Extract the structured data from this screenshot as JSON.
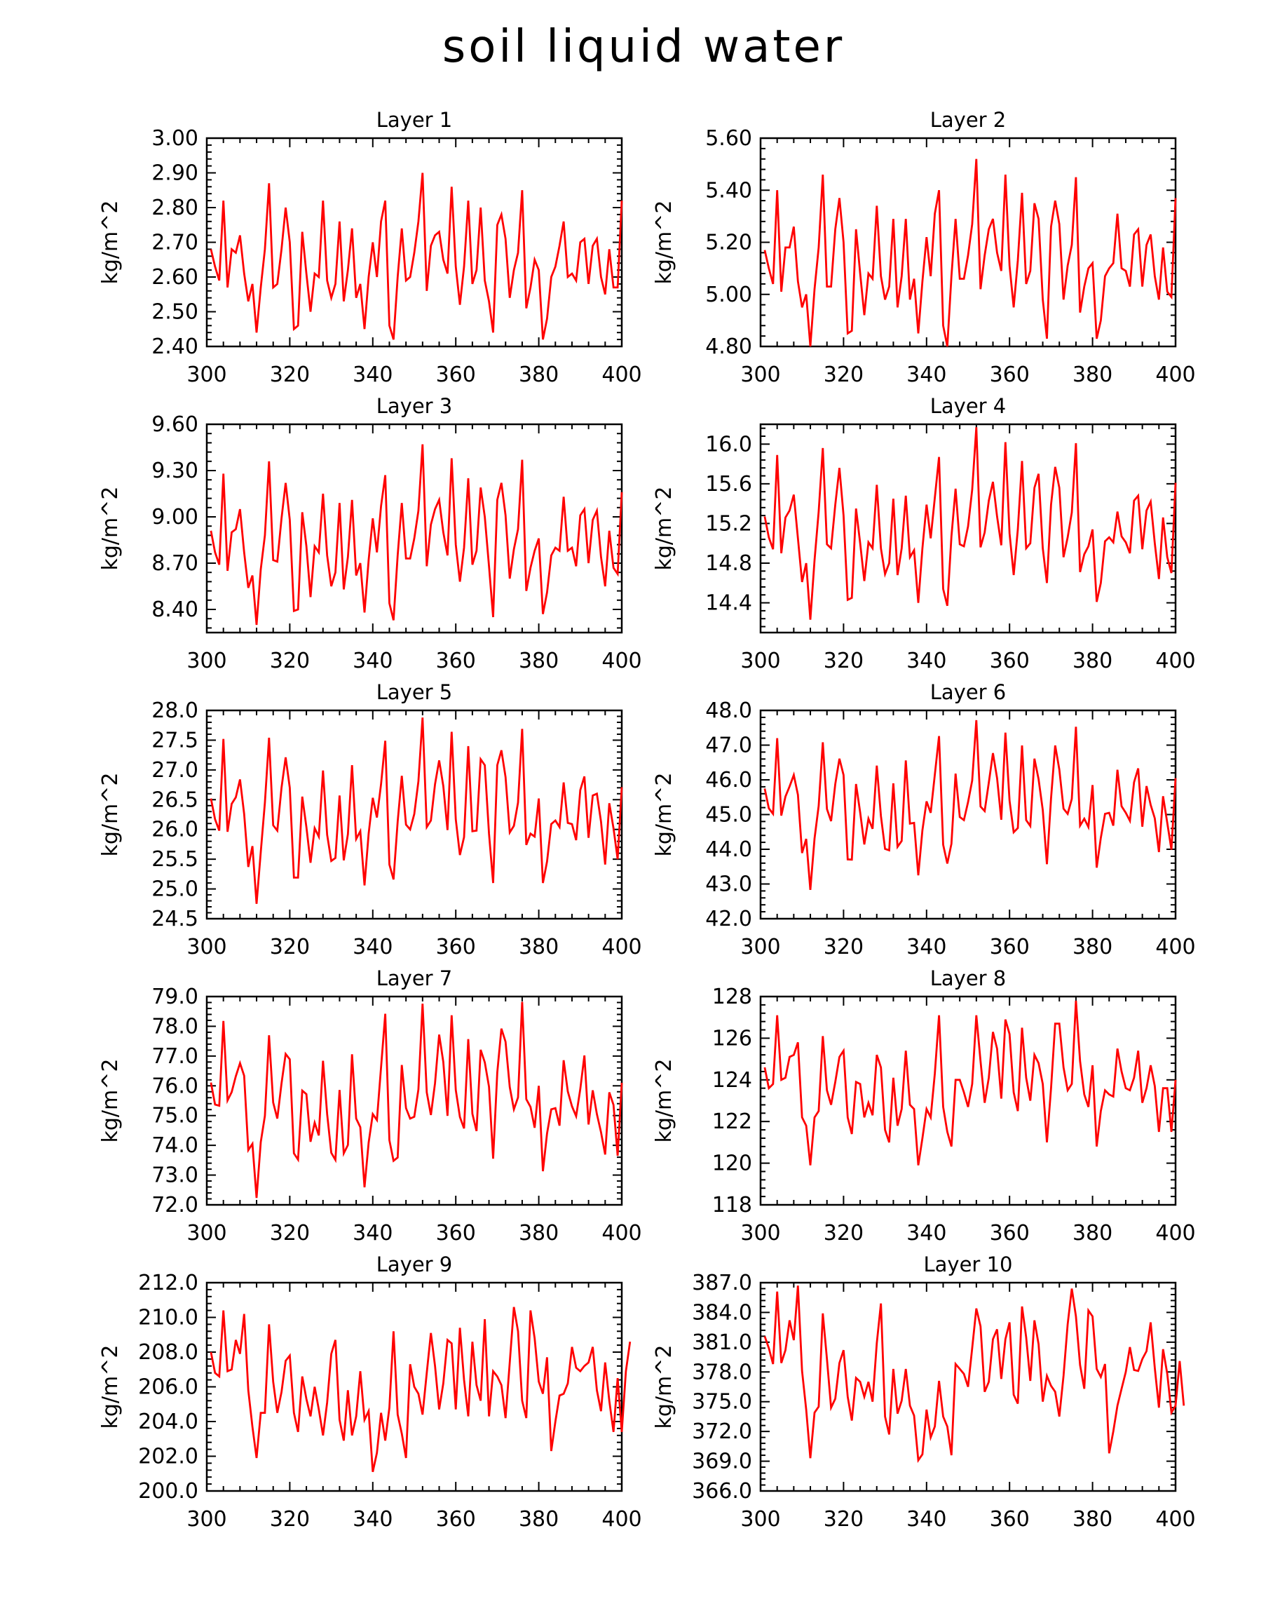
{
  "title": "soil liquid water",
  "footer_label": "",
  "chart_data": [
    {
      "type": "line",
      "title": "Layer 1",
      "xlabel": "",
      "ylabel": "kg/m^2",
      "xlim": [
        300,
        400
      ],
      "ylim": [
        2.4,
        3.0
      ],
      "yticks": [
        "2.40",
        "2.50",
        "2.60",
        "2.70",
        "2.80",
        "2.90",
        "3.00"
      ],
      "xticks": [
        "300",
        "320",
        "340",
        "360",
        "380",
        "400"
      ],
      "x_start": 301,
      "x_step": 1,
      "values": [
        2.68,
        2.63,
        2.59,
        2.82,
        2.57,
        2.68,
        2.67,
        2.72,
        2.61,
        2.53,
        2.58,
        2.44,
        2.57,
        2.68,
        2.87,
        2.57,
        2.58,
        2.68,
        2.8,
        2.7,
        2.45,
        2.46,
        2.73,
        2.61,
        2.5,
        2.61,
        2.6,
        2.82,
        2.59,
        2.54,
        2.58,
        2.76,
        2.53,
        2.62,
        2.74,
        2.54,
        2.58,
        2.45,
        2.6,
        2.7,
        2.6,
        2.76,
        2.82,
        2.46,
        2.42,
        2.6,
        2.74,
        2.59,
        2.6,
        2.67,
        2.76,
        2.9,
        2.56,
        2.69,
        2.72,
        2.73,
        2.65,
        2.61,
        2.86,
        2.63,
        2.52,
        2.63,
        2.82,
        2.58,
        2.62,
        2.8,
        2.59,
        2.53,
        2.44,
        2.75,
        2.78,
        2.71,
        2.54,
        2.62,
        2.67,
        2.85,
        2.51,
        2.57,
        2.65,
        2.62,
        2.42,
        2.48,
        2.6,
        2.63,
        2.69,
        2.76,
        2.6,
        2.61,
        2.59,
        2.7,
        2.71,
        2.58,
        2.69,
        2.71,
        2.6,
        2.55,
        2.68,
        2.57,
        2.57,
        2.82
      ]
    },
    {
      "type": "line",
      "title": "Layer 2",
      "xlabel": "",
      "ylabel": "kg/m^2",
      "xlim": [
        300,
        400
      ],
      "ylim": [
        4.8,
        5.6
      ],
      "yticks": [
        "4.80",
        "5.00",
        "5.20",
        "5.40",
        "5.60"
      ],
      "xticks": [
        "300",
        "320",
        "340",
        "360",
        "380",
        "400"
      ],
      "x_start": 301,
      "x_step": 1,
      "values": [
        5.17,
        5.1,
        5.04,
        5.4,
        5.01,
        5.18,
        5.18,
        5.26,
        5.05,
        4.95,
        5.0,
        4.8,
        5.02,
        5.18,
        5.46,
        5.03,
        5.03,
        5.25,
        5.37,
        5.2,
        4.85,
        4.86,
        5.25,
        5.08,
        4.92,
        5.08,
        5.06,
        5.34,
        5.07,
        4.98,
        5.03,
        5.29,
        4.95,
        5.07,
        5.29,
        4.98,
        5.06,
        4.85,
        5.05,
        5.22,
        5.07,
        5.31,
        5.4,
        4.88,
        4.8,
        5.07,
        5.29,
        5.06,
        5.06,
        5.15,
        5.27,
        5.52,
        5.02,
        5.15,
        5.25,
        5.29,
        5.16,
        5.09,
        5.46,
        5.11,
        4.95,
        5.13,
        5.39,
        5.04,
        5.09,
        5.35,
        5.29,
        4.98,
        4.83,
        5.26,
        5.36,
        5.27,
        4.98,
        5.11,
        5.19,
        5.45,
        4.93,
        5.03,
        5.1,
        5.12,
        4.83,
        4.9,
        5.07,
        5.1,
        5.12,
        5.31,
        5.1,
        5.09,
        5.03,
        5.23,
        5.25,
        5.03,
        5.19,
        5.23,
        5.07,
        4.98,
        5.18,
        5.01,
        4.99,
        5.37
      ]
    },
    {
      "type": "line",
      "title": "Layer 3",
      "xlabel": "",
      "ylabel": "kg/m^2",
      "xlim": [
        300,
        400
      ],
      "ylim": [
        8.25,
        9.6
      ],
      "yticks": [
        "8.40",
        "8.70",
        "9.00",
        "9.30",
        "9.60"
      ],
      "xticks": [
        "300",
        "320",
        "340",
        "360",
        "380",
        "400"
      ],
      "x_start": 301,
      "x_step": 1,
      "values": [
        8.91,
        8.77,
        8.69,
        9.28,
        8.65,
        8.9,
        8.92,
        9.05,
        8.77,
        8.54,
        8.62,
        8.3,
        8.66,
        8.88,
        9.36,
        8.72,
        8.71,
        8.99,
        9.22,
        8.98,
        8.39,
        8.4,
        9.03,
        8.81,
        8.48,
        8.81,
        8.77,
        9.15,
        8.75,
        8.55,
        8.64,
        9.09,
        8.53,
        8.74,
        9.11,
        8.62,
        8.7,
        8.38,
        8.72,
        8.99,
        8.77,
        9.07,
        9.27,
        8.44,
        8.33,
        8.75,
        9.09,
        8.73,
        8.73,
        8.86,
        9.04,
        9.47,
        8.68,
        8.95,
        9.05,
        9.11,
        8.9,
        8.75,
        9.38,
        8.82,
        8.58,
        8.8,
        9.25,
        8.69,
        8.78,
        9.19,
        9.0,
        8.68,
        8.35,
        9.11,
        9.22,
        9.01,
        8.6,
        8.79,
        8.92,
        9.37,
        8.52,
        8.67,
        8.78,
        8.86,
        8.37,
        8.51,
        8.75,
        8.8,
        8.78,
        9.13,
        8.78,
        8.8,
        8.68,
        9.01,
        9.05,
        8.7,
        8.98,
        9.04,
        8.74,
        8.55,
        8.91,
        8.67,
        8.63,
        9.16
      ]
    },
    {
      "type": "line",
      "title": "Layer 4",
      "xlabel": "",
      "ylabel": "kg/m^2",
      "xlim": [
        300,
        400
      ],
      "ylim": [
        14.1,
        16.2
      ],
      "yticks": [
        "14.4",
        "14.8",
        "15.2",
        "15.6",
        "16.0"
      ],
      "xticks": [
        "300",
        "320",
        "340",
        "360",
        "380",
        "400"
      ],
      "x_start": 301,
      "x_step": 1,
      "values": [
        15.27,
        15.06,
        14.94,
        15.89,
        14.9,
        15.26,
        15.33,
        15.49,
        15.05,
        14.61,
        14.8,
        14.23,
        14.83,
        15.32,
        15.96,
        14.99,
        14.95,
        15.39,
        15.76,
        15.28,
        14.43,
        14.45,
        15.35,
        15.0,
        14.62,
        15.01,
        14.95,
        15.59,
        14.95,
        14.69,
        14.8,
        15.45,
        14.68,
        14.95,
        15.48,
        14.86,
        14.93,
        14.4,
        14.95,
        15.39,
        15.05,
        15.46,
        15.87,
        14.54,
        14.37,
        15.07,
        15.55,
        14.99,
        14.97,
        15.17,
        15.54,
        16.17,
        14.96,
        15.11,
        15.43,
        15.62,
        15.27,
        14.98,
        16.02,
        15.1,
        14.68,
        15.14,
        15.83,
        14.95,
        15.0,
        15.56,
        15.7,
        14.95,
        14.6,
        15.39,
        15.77,
        15.56,
        14.86,
        15.06,
        15.31,
        16.01,
        14.71,
        14.89,
        14.97,
        15.14,
        14.41,
        14.6,
        15.02,
        15.06,
        15.01,
        15.32,
        15.07,
        15.01,
        14.9,
        15.43,
        15.48,
        14.94,
        15.33,
        15.42,
        15.0,
        14.64,
        15.26,
        14.86,
        14.7,
        15.61
      ]
    },
    {
      "type": "line",
      "title": "Layer 5",
      "xlabel": "",
      "ylabel": "kg/m^2",
      "xlim": [
        300,
        400
      ],
      "ylim": [
        24.5,
        28.0
      ],
      "yticks": [
        "24.5",
        "25.0",
        "25.5",
        "26.0",
        "26.5",
        "27.0",
        "27.5",
        "28.0"
      ],
      "xticks": [
        "300",
        "320",
        "340",
        "360",
        "380",
        "400"
      ],
      "x_start": 301,
      "x_step": 1,
      "values": [
        26.52,
        26.17,
        25.98,
        27.52,
        25.96,
        26.43,
        26.54,
        26.84,
        26.26,
        25.37,
        25.72,
        24.75,
        25.62,
        26.45,
        27.54,
        26.07,
        25.98,
        26.7,
        27.21,
        26.7,
        25.19,
        25.19,
        26.55,
        26.04,
        25.44,
        26.02,
        25.88,
        26.99,
        25.91,
        25.47,
        25.52,
        26.57,
        25.48,
        25.92,
        27.08,
        25.84,
        25.97,
        25.06,
        25.93,
        26.53,
        26.2,
        26.76,
        27.49,
        25.41,
        25.16,
        26.13,
        26.9,
        26.08,
        26.0,
        26.26,
        26.81,
        27.88,
        26.04,
        26.15,
        26.76,
        27.16,
        26.73,
        25.99,
        27.64,
        26.17,
        25.57,
        25.87,
        27.4,
        25.97,
        25.98,
        27.18,
        27.08,
        25.93,
        25.1,
        27.08,
        27.33,
        26.88,
        25.95,
        26.06,
        26.45,
        27.69,
        25.74,
        25.93,
        25.88,
        26.52,
        25.1,
        25.46,
        26.09,
        26.15,
        26.04,
        26.79,
        26.11,
        26.09,
        25.82,
        26.66,
        26.89,
        25.86,
        26.57,
        26.6,
        26.13,
        25.41,
        26.44,
        26.02,
        25.5,
        26.71
      ]
    },
    {
      "type": "line",
      "title": "Layer 6",
      "xlabel": "",
      "ylabel": "kg/m^2",
      "xlim": [
        300,
        400
      ],
      "ylim": [
        42.0,
        48.0
      ],
      "yticks": [
        "42.0",
        "43.0",
        "44.0",
        "45.0",
        "46.0",
        "47.0",
        "48.0"
      ],
      "xticks": [
        "300",
        "320",
        "340",
        "360",
        "380",
        "400"
      ],
      "x_start": 301,
      "x_step": 1,
      "values": [
        45.75,
        45.18,
        45.02,
        47.2,
        44.97,
        45.52,
        45.81,
        46.14,
        45.57,
        43.89,
        44.3,
        42.83,
        44.31,
        45.25,
        47.08,
        45.16,
        44.81,
        45.88,
        46.61,
        46.14,
        43.71,
        43.7,
        45.88,
        45.06,
        44.14,
        44.88,
        44.59,
        46.41,
        44.96,
        44.01,
        43.97,
        45.9,
        44.07,
        44.24,
        46.56,
        44.74,
        44.76,
        43.25,
        44.55,
        45.38,
        45.05,
        46.15,
        47.26,
        44.13,
        43.59,
        44.16,
        46.18,
        44.93,
        44.84,
        45.36,
        45.98,
        47.72,
        45.23,
        45.1,
        45.92,
        46.77,
        46.05,
        44.85,
        47.36,
        45.4,
        44.49,
        44.61,
        46.99,
        44.84,
        44.67,
        46.61,
        46.02,
        45.13,
        43.57,
        45.47,
        46.99,
        46.3,
        45.17,
        45.02,
        45.45,
        47.53,
        44.68,
        44.88,
        44.64,
        45.85,
        43.47,
        44.33,
        45.02,
        45.05,
        44.68,
        46.29,
        45.24,
        45.05,
        44.82,
        45.93,
        46.33,
        44.65,
        45.82,
        45.28,
        44.89,
        43.92,
        45.53,
        44.76,
        43.99,
        46.05
      ]
    },
    {
      "type": "line",
      "title": "Layer 7",
      "xlabel": "",
      "ylabel": "kg/m^2",
      "xlim": [
        300,
        400
      ],
      "ylim": [
        72.0,
        79.0
      ],
      "yticks": [
        "72.0",
        "73.0",
        "74.0",
        "75.0",
        "76.0",
        "77.0",
        "78.0",
        "79.0"
      ],
      "xticks": [
        "300",
        "320",
        "340",
        "360",
        "380",
        "400"
      ],
      "x_start": 301,
      "x_step": 1,
      "values": [
        76.11,
        75.37,
        75.33,
        78.18,
        75.51,
        75.79,
        76.32,
        76.76,
        76.34,
        73.84,
        74.05,
        72.23,
        74.11,
        74.99,
        77.7,
        75.44,
        74.9,
        76.08,
        77.07,
        76.89,
        73.73,
        73.52,
        75.84,
        75.72,
        74.12,
        74.76,
        74.33,
        76.84,
        75.05,
        73.75,
        73.51,
        75.86,
        73.73,
        74.01,
        77.06,
        74.9,
        74.61,
        72.59,
        74.09,
        75.05,
        74.85,
        76.62,
        78.42,
        74.17,
        73.48,
        73.59,
        76.7,
        75.25,
        74.9,
        74.96,
        75.88,
        78.76,
        75.78,
        75.02,
        76.09,
        77.72,
        76.8,
        74.99,
        78.37,
        75.86,
        74.95,
        74.57,
        77.57,
        75.06,
        74.48,
        77.21,
        76.79,
        75.97,
        73.55,
        76.45,
        77.92,
        77.48,
        75.96,
        75.21,
        75.61,
        78.82,
        75.55,
        75.29,
        74.59,
        76.0,
        73.13,
        74.4,
        75.21,
        75.25,
        74.66,
        76.86,
        75.81,
        75.31,
        74.98,
        75.89,
        77.02,
        74.7,
        75.85,
        75.05,
        74.44,
        73.69,
        75.78,
        75.36,
        73.65,
        76.1
      ]
    },
    {
      "type": "line",
      "title": "Layer 8",
      "xlabel": "",
      "ylabel": "kg/m^2",
      "xlim": [
        300,
        400
      ],
      "ylim": [
        118,
        128
      ],
      "yticks": [
        "118",
        "120",
        "122",
        "124",
        "126",
        "128"
      ],
      "xticks": [
        "300",
        "320",
        "340",
        "360",
        "380",
        "400"
      ],
      "x_start": 301,
      "x_step": 1,
      "values": [
        124.6,
        123.6,
        123.8,
        127.1,
        124.0,
        124.1,
        125.1,
        125.2,
        125.8,
        122.2,
        121.8,
        119.9,
        122.2,
        122.5,
        126.1,
        123.5,
        122.8,
        123.9,
        125.1,
        125.4,
        122.2,
        121.4,
        123.9,
        123.8,
        122.2,
        122.9,
        122.3,
        125.2,
        124.6,
        121.6,
        121.0,
        124.1,
        121.8,
        122.6,
        125.4,
        122.8,
        122.6,
        119.9,
        121.2,
        122.6,
        122.2,
        124.3,
        127.1,
        122.7,
        121.5,
        120.8,
        124.0,
        124.0,
        123.4,
        122.7,
        123.8,
        127.1,
        124.9,
        122.9,
        124.1,
        126.3,
        125.5,
        123.1,
        126.9,
        126.2,
        123.4,
        122.5,
        126.5,
        124.1,
        123.0,
        125.2,
        124.8,
        123.8,
        121.0,
        123.6,
        126.7,
        126.7,
        124.6,
        123.5,
        123.8,
        127.8,
        124.9,
        123.3,
        122.7,
        124.7,
        120.8,
        122.5,
        123.5,
        123.3,
        123.2,
        125.5,
        124.4,
        123.6,
        123.5,
        124.1,
        125.4,
        122.9,
        123.6,
        124.7,
        123.7,
        121.5,
        123.6,
        123.6,
        121.5,
        124.0
      ]
    },
    {
      "type": "line",
      "title": "Layer 9",
      "xlabel": "",
      "ylabel": "kg/m^2",
      "xlim": [
        300,
        400
      ],
      "ylim": [
        200.0,
        212.0
      ],
      "yticks": [
        "200.0",
        "202.0",
        "204.0",
        "206.0",
        "208.0",
        "210.0",
        "212.0"
      ],
      "xticks": [
        "300",
        "320",
        "340",
        "360",
        "380",
        "400"
      ],
      "x_start": 301,
      "x_step": 1,
      "values": [
        208.0,
        206.8,
        206.6,
        210.4,
        206.9,
        207.0,
        208.7,
        207.9,
        210.2,
        205.8,
        203.7,
        201.9,
        204.5,
        204.5,
        209.6,
        206.3,
        204.5,
        205.7,
        207.5,
        207.8,
        204.5,
        203.4,
        206.6,
        205.3,
        204.3,
        206.0,
        204.7,
        203.2,
        205.1,
        207.9,
        208.7,
        204.1,
        202.9,
        205.8,
        203.2,
        204.3,
        206.9,
        204.1,
        204.6,
        201.1,
        202.2,
        204.5,
        202.9,
        204.8,
        209.2,
        204.4,
        203.3,
        201.9,
        207.3,
        206.0,
        205.6,
        204.4,
        206.8,
        209.1,
        207.2,
        204.7,
        206.2,
        208.7,
        208.5,
        204.7,
        209.4,
        206.4,
        204.3,
        208.6,
        206.1,
        205.2,
        209.9,
        204.3,
        206.9,
        206.6,
        206.1,
        204.2,
        207.4,
        210.6,
        209.2,
        205.2,
        204.2,
        210.4,
        208.8,
        206.3,
        205.6,
        207.7,
        202.3,
        204.0,
        205.5,
        205.6,
        206.2,
        208.3,
        207.1,
        206.9,
        207.2,
        207.4,
        208.3,
        205.8,
        204.6,
        207.4,
        205.2,
        203.4,
        206.5,
        203.4,
        206.9,
        208.6
      ]
    },
    {
      "type": "line",
      "title": "Layer 10",
      "xlabel": "",
      "ylabel": "kg/m^2",
      "xlim": [
        300,
        400
      ],
      "ylim": [
        366.0,
        387.0
      ],
      "yticks": [
        "366.0",
        "369.0",
        "372.0",
        "375.0",
        "378.0",
        "381.0",
        "384.0",
        "387.0"
      ],
      "xticks": [
        "300",
        "320",
        "340",
        "360",
        "380",
        "400"
      ],
      "x_start": 301,
      "x_step": 1,
      "values": [
        381.6,
        380.4,
        378.8,
        386.1,
        378.9,
        380.2,
        383.2,
        381.2,
        386.7,
        378.1,
        374.2,
        369.3,
        373.9,
        374.5,
        383.9,
        379.3,
        374.4,
        375.3,
        378.9,
        380.2,
        375.5,
        373.1,
        377.4,
        377.0,
        375.5,
        377.0,
        375.0,
        380.9,
        384.9,
        373.5,
        371.7,
        378.3,
        373.8,
        375.1,
        378.3,
        374.6,
        373.6,
        369.1,
        369.7,
        374.2,
        371.4,
        372.5,
        377.1,
        373.5,
        372.5,
        369.6,
        378.8,
        378.3,
        377.8,
        376.5,
        380.4,
        384.4,
        382.6,
        376.0,
        377.0,
        381.3,
        382.3,
        377.3,
        381.3,
        383.0,
        375.7,
        374.8,
        384.6,
        381.5,
        377.1,
        383.2,
        380.8,
        375.0,
        377.6,
        376.6,
        376.0,
        373.5,
        377.6,
        382.8,
        386.4,
        383.6,
        378.7,
        376.3,
        384.2,
        383.6,
        378.3,
        377.5,
        378.8,
        369.8,
        372.0,
        374.6,
        376.3,
        378.0,
        380.5,
        378.2,
        378.1,
        379.3,
        380.1,
        383.0,
        378.4,
        374.4,
        380.3,
        377.8,
        373.9,
        374.6,
        379.1,
        374.6
      ]
    }
  ]
}
